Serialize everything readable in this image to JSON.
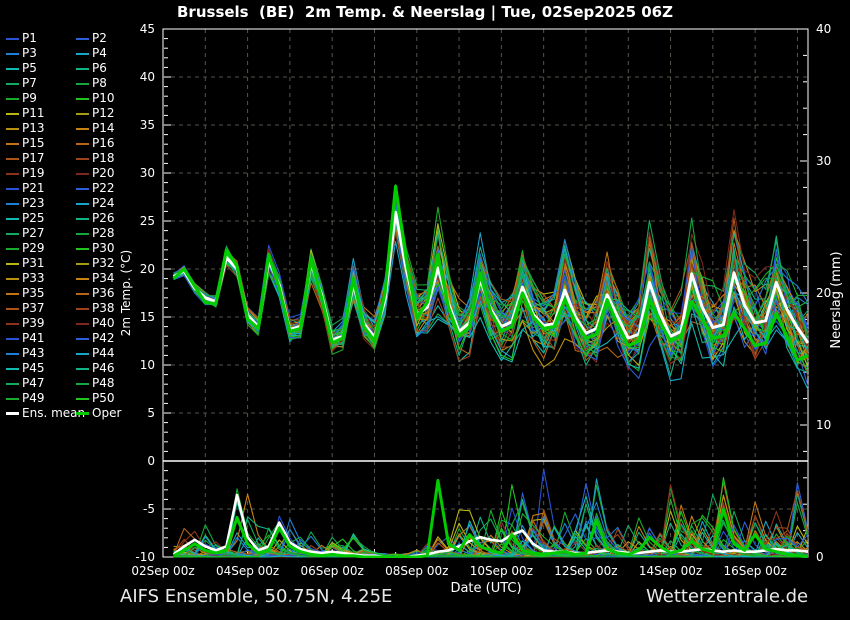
{
  "header": {
    "title": "Brussels  (BE)  2m Temp. & Neerslag | Tue, 02Sep2025 06Z"
  },
  "footer": {
    "left": "AIFS Ensemble, 50.75N, 4.25E",
    "right": "Wetterzentrale.de"
  },
  "colors": {
    "background": "#000000",
    "axis": "#ffffff",
    "grid": "#56564c",
    "zero_line": "#ffffff",
    "ens_mean": "#ffffff",
    "oper": "#00cc00",
    "member_palette": [
      "#2952d4",
      "#2b5fd9",
      "#1f7fd4",
      "#18a3c8",
      "#12b9b1",
      "#10b287",
      "#12aa5c",
      "#15a63e",
      "#18ac2a",
      "#1fc41f",
      "#b9b513",
      "#a49c11",
      "#bd9110",
      "#c68312",
      "#c17413",
      "#b66416",
      "#aa5418",
      "#9d431a",
      "#8d321c",
      "#7d281e"
    ]
  },
  "legend": {
    "position": "left",
    "member_labels": [
      "P1",
      "P2",
      "P3",
      "P4",
      "P5",
      "P6",
      "P7",
      "P8",
      "P9",
      "P10",
      "P11",
      "P12",
      "P13",
      "P14",
      "P15",
      "P16",
      "P17",
      "P18",
      "P19",
      "P20",
      "P21",
      "P22",
      "P23",
      "P24",
      "P25",
      "P26",
      "P27",
      "P28",
      "P29",
      "P30",
      "P31",
      "P32",
      "P33",
      "P34",
      "P35",
      "P36",
      "P37",
      "P38",
      "P39",
      "P40",
      "P41",
      "P42",
      "P43",
      "P44",
      "P45",
      "P46",
      "P47",
      "P48",
      "P49",
      "P50"
    ],
    "mean_label": "Ens. mean",
    "oper_label": "Oper"
  },
  "chart_data": {
    "type": "line",
    "title": "Brussels  (BE)  2m Temp. & Neerslag | Tue, 02Sep2025 06Z",
    "xlabel": "Date (UTC)",
    "ylabel_left": "2m Temp. (°C)",
    "ylabel_right": "Neerslag (mm)",
    "grid": "on",
    "legend_position": "left",
    "x_range_days": [
      0,
      15.25
    ],
    "x_tick_labels": [
      "02Sep 00z",
      "04Sep 00z",
      "06Sep 00z",
      "08Sep 00z",
      "10Sep 00z",
      "12Sep 00z",
      "14Sep 00z",
      "16Sep 00z"
    ],
    "x_tick_days": [
      0,
      2,
      4,
      6,
      8,
      10,
      12,
      14
    ],
    "x_grid_step_days": 1,
    "y_left_range": [
      -10,
      45
    ],
    "y_left_ticks": [
      45,
      40,
      35,
      30,
      25,
      20,
      15,
      10,
      5,
      0,
      -5,
      -10
    ],
    "y_left_grid_step": 5,
    "zero_line_temp": 0,
    "y_right_range": [
      0,
      40
    ],
    "y_right_ticks": [
      40,
      30,
      20,
      10,
      0
    ],
    "time_start_day": 0.25,
    "time_step_days": 0.25,
    "members": {
      "count": 50,
      "seed": 42
    },
    "series": {
      "ens_mean_temp": [
        19.2,
        19.8,
        18.0,
        17.0,
        16.6,
        21.2,
        20.0,
        15.2,
        14.0,
        20.9,
        18.3,
        13.7,
        14.0,
        20.6,
        17.3,
        12.6,
        13.0,
        18.4,
        14.3,
        12.9,
        16.8,
        25.9,
        20.0,
        15.3,
        16.0,
        20.1,
        16.4,
        13.5,
        14.4,
        18.9,
        15.8,
        14.0,
        14.5,
        18.1,
        15.3,
        14.1,
        14.3,
        17.8,
        15.0,
        13.3,
        13.8,
        17.3,
        15.0,
        12.8,
        13.2,
        18.6,
        15.4,
        13.0,
        13.5,
        19.5,
        16.0,
        13.9,
        14.2,
        19.6,
        16.2,
        14.4,
        14.6,
        18.6,
        15.8,
        13.9,
        12.3
      ],
      "oper_temp": [
        19.0,
        20.0,
        18.2,
        16.5,
        16.4,
        22.0,
        20.3,
        14.8,
        13.8,
        21.5,
        18.0,
        13.5,
        13.8,
        21.0,
        17.0,
        12.3,
        12.8,
        19.0,
        14.0,
        12.5,
        17.5,
        28.6,
        21.0,
        15.0,
        16.5,
        21.5,
        16.0,
        13.0,
        14.0,
        19.5,
        15.5,
        13.5,
        14.0,
        17.5,
        15.0,
        13.8,
        14.0,
        16.8,
        14.5,
        12.8,
        13.2,
        16.8,
        14.2,
        12.0,
        12.5,
        16.8,
        14.5,
        12.5,
        13.0,
        16.6,
        14.8,
        12.8,
        13.0,
        15.4,
        13.8,
        12.0,
        12.3,
        15.4,
        13.0,
        10.5,
        11.0
      ],
      "ens_mean_precip": [
        0.2,
        0.8,
        1.3,
        0.8,
        0.5,
        0.8,
        4.7,
        1.5,
        0.5,
        0.8,
        2.6,
        1.1,
        0.6,
        0.4,
        0.3,
        0.4,
        0.3,
        0.2,
        0.1,
        0.1,
        0.0,
        0.0,
        0.0,
        0.1,
        0.2,
        0.4,
        0.5,
        0.8,
        1.2,
        1.5,
        1.3,
        1.2,
        1.7,
        2.0,
        1.0,
        0.5,
        0.4,
        0.4,
        0.3,
        0.3,
        0.4,
        0.5,
        0.4,
        0.3,
        0.3,
        0.4,
        0.5,
        0.4,
        0.4,
        0.5,
        0.6,
        0.5,
        0.4,
        0.5,
        0.4,
        0.4,
        0.5,
        0.6,
        0.5,
        0.5,
        0.4
      ],
      "oper_precip": [
        0.1,
        0.5,
        1.0,
        0.5,
        0.3,
        0.5,
        3.0,
        1.0,
        0.3,
        0.5,
        2.2,
        0.8,
        0.4,
        0.2,
        0.1,
        0.2,
        0.1,
        0.1,
        0.0,
        0.0,
        0.0,
        0.0,
        0.0,
        0.0,
        0.1,
        5.8,
        1.0,
        0.5,
        1.7,
        0.8,
        0.5,
        0.3,
        1.7,
        0.5,
        0.3,
        0.2,
        0.3,
        0.4,
        0.2,
        0.3,
        2.8,
        0.6,
        0.3,
        0.2,
        0.5,
        1.5,
        0.8,
        0.3,
        0.5,
        1.2,
        0.6,
        0.4,
        3.6,
        1.0,
        0.5,
        1.7,
        0.6,
        0.4,
        0.2,
        0.1,
        0.0
      ],
      "member_temp_spread": [
        0.4,
        0.5,
        0.4,
        0.5,
        0.6,
        0.9,
        0.7,
        0.8,
        0.8,
        1.2,
        0.9,
        1.0,
        1.0,
        1.5,
        1.1,
        1.2,
        1.3,
        1.9,
        1.4,
        1.6,
        1.7,
        2.4,
        1.9,
        2.2,
        2.4,
        4.6,
        2.6,
        2.6,
        2.7,
        3.7,
        2.8,
        2.8,
        2.9,
        3.9,
        3.0,
        3.0,
        3.1,
        4.1,
        3.2,
        3.2,
        3.3,
        4.4,
        3.4,
        3.4,
        3.5,
        4.7,
        3.6,
        3.6,
        3.7,
        4.9,
        3.8,
        3.8,
        3.9,
        5.1,
        4.0,
        4.0,
        4.1,
        5.2,
        4.2,
        4.2,
        4.3
      ],
      "member_precip_max": [
        2,
        5,
        6,
        4,
        3,
        4,
        12.5,
        8,
        4,
        5,
        9,
        5,
        4,
        5,
        3,
        3,
        2,
        4,
        1,
        0.5,
        0.3,
        0.3,
        0.5,
        1,
        2,
        4,
        3,
        6,
        9,
        8,
        7,
        9,
        11,
        13,
        10,
        14,
        9,
        8,
        7,
        12,
        10,
        8,
        6,
        7,
        8,
        6,
        5,
        13,
        9,
        7,
        6,
        8,
        12,
        9,
        7,
        10,
        8,
        6,
        5,
        13,
        6
      ]
    }
  }
}
